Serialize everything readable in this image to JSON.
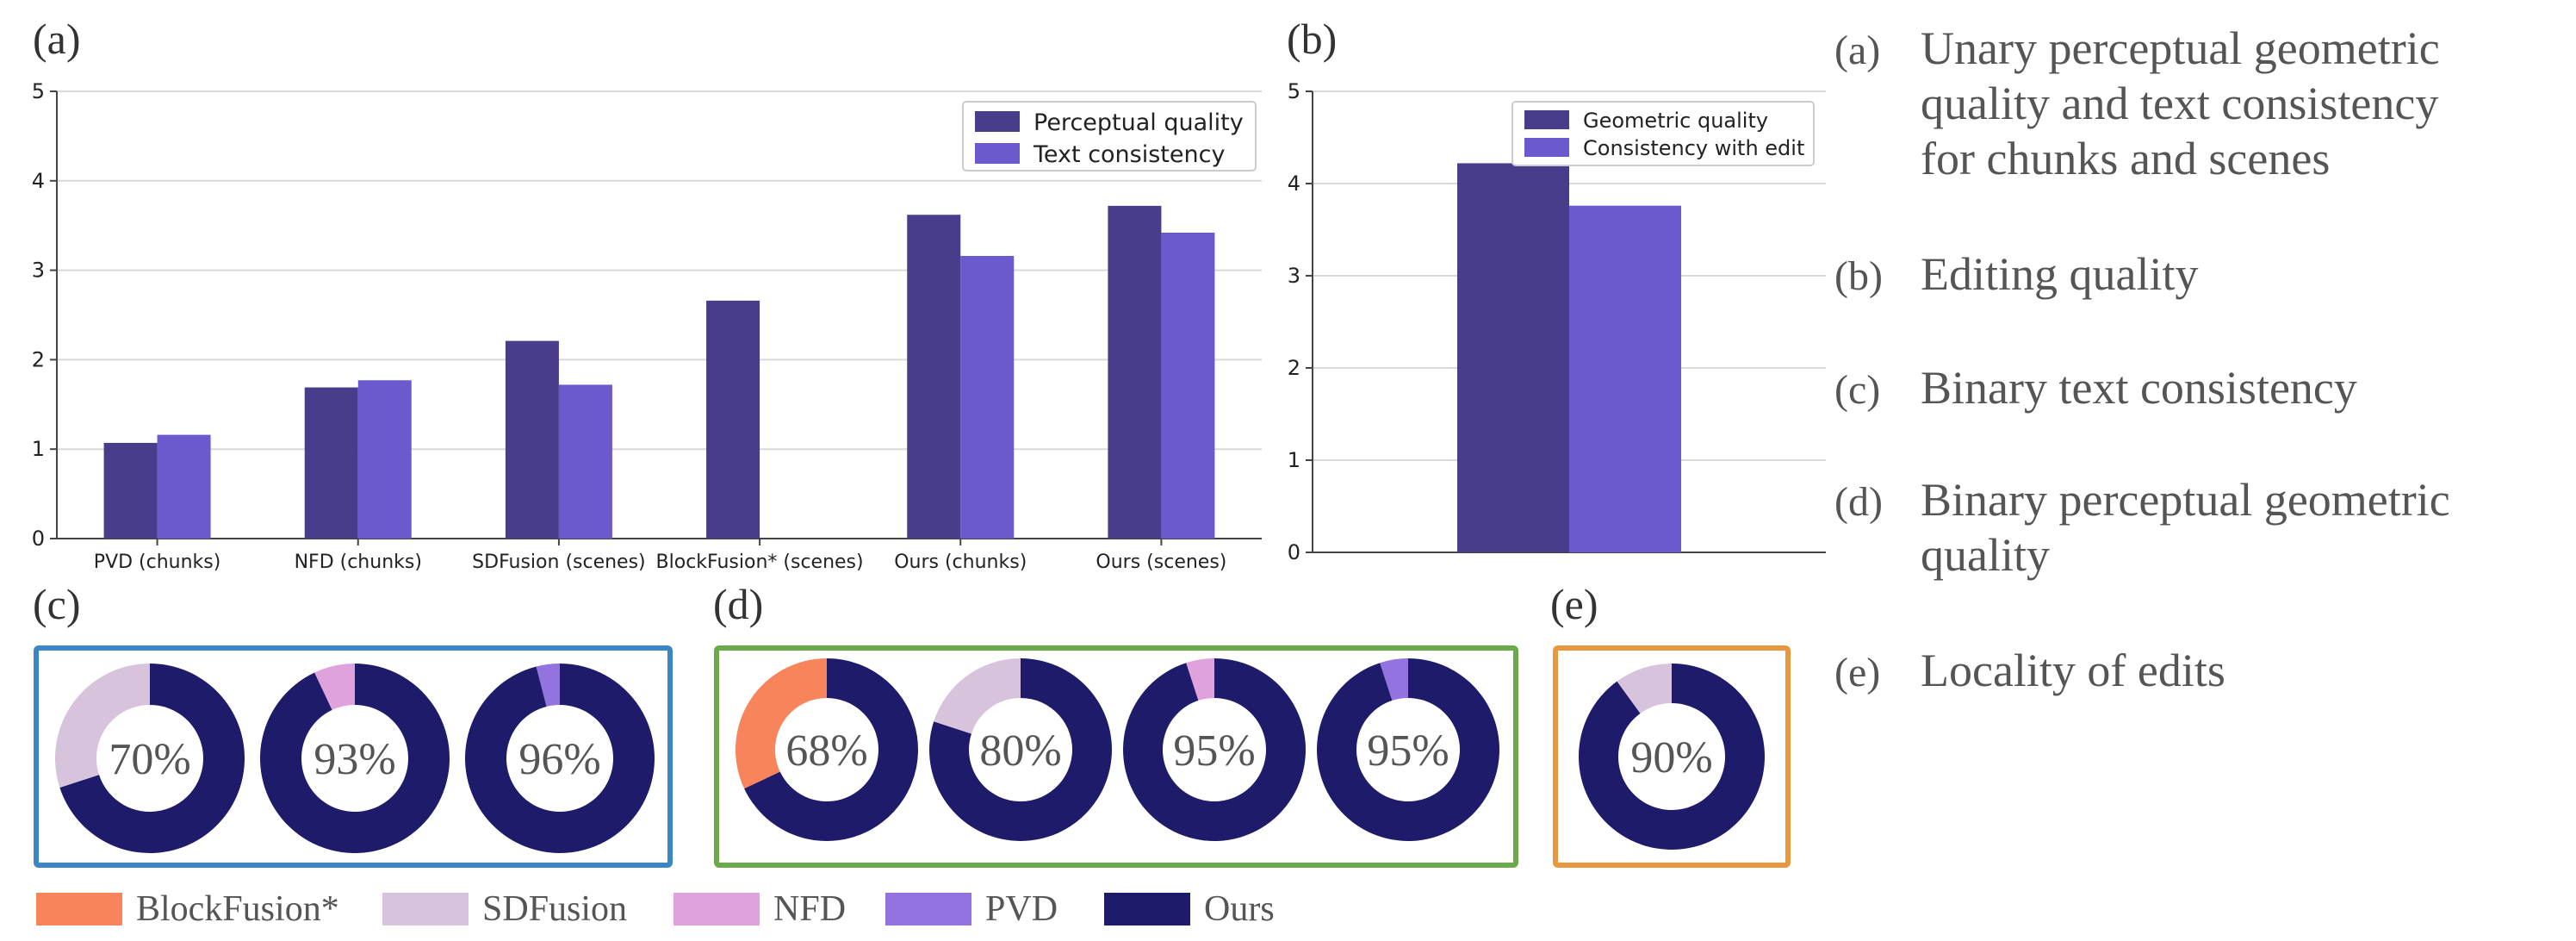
{
  "chart_data": [
    {
      "id": "a",
      "panel_label": "(a)",
      "type": "bar",
      "title": "",
      "xlabel": "",
      "ylabel": "",
      "ylim": [
        0,
        5
      ],
      "yticks": [
        "0",
        "1",
        "2",
        "3",
        "4",
        "5"
      ],
      "grid": true,
      "legend_position": "top-right",
      "categories": [
        "PVD (chunks)",
        "NFD (chunks)",
        "SDFusion (scenes)",
        "BlockFusion* (scenes)",
        "Ours (chunks)",
        "Ours (scenes)"
      ],
      "series": [
        {
          "name": "Perceptual quality",
          "color": "#483d8b",
          "values": [
            1.07,
            1.69,
            2.21,
            2.66,
            3.62,
            3.72
          ]
        },
        {
          "name": "Text consistency",
          "color": "#6a5acd",
          "values": [
            1.16,
            1.77,
            1.72,
            null,
            3.16,
            3.42
          ]
        }
      ]
    },
    {
      "id": "b",
      "panel_label": "(b)",
      "type": "bar",
      "title": "",
      "xlabel": "",
      "ylabel": "",
      "ylim": [
        0,
        5
      ],
      "yticks": [
        "0",
        "1",
        "2",
        "3",
        "4",
        "5"
      ],
      "grid": true,
      "legend_position": "top-right",
      "categories": [
        ""
      ],
      "series": [
        {
          "name": "Geometric quality",
          "color": "#483d8b",
          "values": [
            4.22
          ]
        },
        {
          "name": "Consistency with edit",
          "color": "#6a5acd",
          "values": [
            3.76
          ]
        }
      ]
    },
    {
      "id": "c",
      "panel_label": "(c)",
      "type": "pie",
      "frame_color": "#3b86c6",
      "donuts": [
        {
          "label": "70%",
          "slices": [
            {
              "name": "Ours",
              "value": 70
            },
            {
              "name": "SDFusion",
              "value": 30
            }
          ]
        },
        {
          "label": "93%",
          "slices": [
            {
              "name": "Ours",
              "value": 93
            },
            {
              "name": "NFD",
              "value": 7
            }
          ]
        },
        {
          "label": "96%",
          "slices": [
            {
              "name": "Ours",
              "value": 96
            },
            {
              "name": "PVD",
              "value": 4
            }
          ]
        }
      ]
    },
    {
      "id": "d",
      "panel_label": "(d)",
      "type": "pie",
      "frame_color": "#6aaa4a",
      "donuts": [
        {
          "label": "68%",
          "slices": [
            {
              "name": "Ours",
              "value": 68
            },
            {
              "name": "BlockFusion*",
              "value": 32
            }
          ]
        },
        {
          "label": "80%",
          "slices": [
            {
              "name": "Ours",
              "value": 80
            },
            {
              "name": "SDFusion",
              "value": 20
            }
          ]
        },
        {
          "label": "95%",
          "slices": [
            {
              "name": "Ours",
              "value": 95
            },
            {
              "name": "NFD",
              "value": 5
            }
          ]
        },
        {
          "label": "95%",
          "slices": [
            {
              "name": "Ours",
              "value": 95
            },
            {
              "name": "PVD",
              "value": 5
            }
          ]
        }
      ]
    },
    {
      "id": "e",
      "panel_label": "(e)",
      "type": "pie",
      "frame_color": "#e9973f",
      "donuts": [
        {
          "label": "90%",
          "slices": [
            {
              "name": "Ours",
              "value": 90
            },
            {
              "name": "SDFusion",
              "value": 10
            }
          ]
        }
      ]
    }
  ],
  "legend": [
    {
      "name": "BlockFusion*",
      "color": "#f8845b"
    },
    {
      "name": "SDFusion",
      "color": "#d8c3dc"
    },
    {
      "name": "NFD",
      "color": "#e0a2dd"
    },
    {
      "name": "PVD",
      "color": "#9373df"
    },
    {
      "name": "Ours",
      "color": "#1e1b6b"
    }
  ],
  "captions": [
    {
      "key": "(a)",
      "lines": [
        "Unary perceptual geometric",
        "quality and text consistency",
        "for chunks and scenes"
      ]
    },
    {
      "key": "(b)",
      "lines": [
        "Editing quality"
      ]
    },
    {
      "key": "(c)",
      "lines": [
        "Binary text consistency"
      ]
    },
    {
      "key": "(d)",
      "lines": [
        "Binary perceptual geometric",
        "quality"
      ]
    },
    {
      "key": "(e)",
      "lines": [
        "Locality of edits"
      ]
    }
  ]
}
